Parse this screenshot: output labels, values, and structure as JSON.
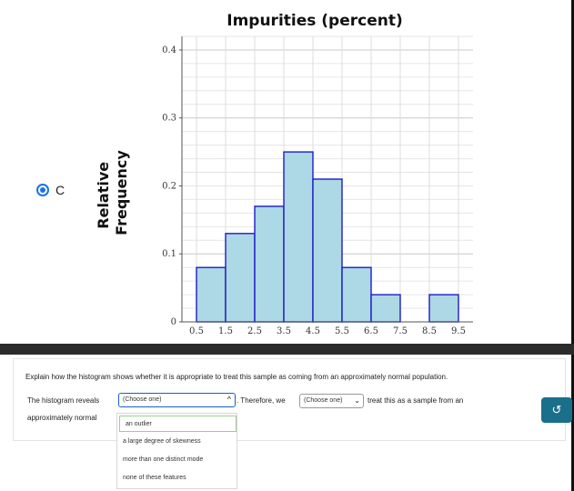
{
  "option": {
    "letter": "C",
    "selected": true
  },
  "chart_data": {
    "type": "bar",
    "title": "Impurities (percent)",
    "ylabel": "Relative Frequency",
    "xlabel": "",
    "bin_edges": [
      0.5,
      1.5,
      2.5,
      3.5,
      4.5,
      5.5,
      6.5,
      7.5,
      8.5,
      9.5
    ],
    "x_ticks": [
      "0.5",
      "1.5",
      "2.5",
      "3.5",
      "4.5",
      "5.5",
      "6.5",
      "7.5",
      "8.5",
      "9.5"
    ],
    "values": [
      0.08,
      0.13,
      0.17,
      0.25,
      0.21,
      0.08,
      0.04,
      0,
      0.04
    ],
    "y_ticks": [
      "0",
      "0.1",
      "0.2",
      "0.3",
      "0.4"
    ],
    "ylim": [
      0,
      0.42
    ],
    "grid": true,
    "bar_color": "#add8e6",
    "bar_edge_color": "#1c1cc4"
  },
  "question": {
    "prompt": "Explain how the histogram shows whether it is appropriate to treat this sample as coming from an approximately normal population.",
    "line1_start": "The histogram reveals",
    "select1_value": "(Choose one)",
    "line1_middle": ". Therefore, we",
    "select2_value": "(Choose one)",
    "line1_end": "treat this as a sample from an",
    "line2": "approximately normal",
    "dropdown_options": [
      "an outlier",
      "a large degree of skewness",
      "more than one distinct mode",
      "none of these features"
    ]
  },
  "undo_icon": "↺"
}
